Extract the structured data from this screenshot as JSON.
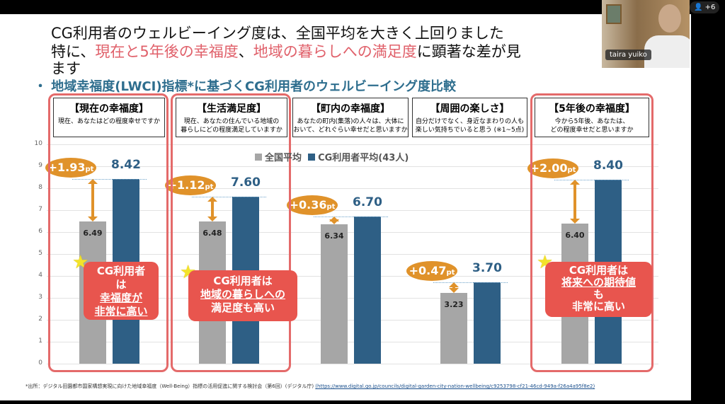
{
  "slide": {
    "title_line1": "CG利用者のウェルビーイング度は、全国平均を大きく上回りました",
    "title_line2_pre": "特に、",
    "title_line2_red1": "現在と5年後の幸福度",
    "title_line2_sep": "、",
    "title_line2_red2": "地域の暮らしへの満足度",
    "title_line2_post": "に顕著な差が見",
    "title_line3": "ます",
    "subtitle": "・ 地域幸福度(LWCI)指標*に基づくCG利用者のウェルビーイング度比較",
    "footnote": "*出所：デジタル田園都市国家構想実現に向けた地域幸福度（Well-Being）指標の活用促進に関する検討会（第6回）(デジタル庁)",
    "footnote_link": "(https://www.digital.go.jp/councils/digital-garden-city-nation-wellbeing/c9253798-cf21-46cd-949a-f26a4a95f8e2)"
  },
  "categories_detail": [
    {
      "title": "【現在の幸福度】",
      "desc": "現在、あなたはどの程度幸せですか"
    },
    {
      "title": "【生活満足度】",
      "desc": "現在、あなたの住んでいる地域の\n暮らしにどの程度満足していますか"
    },
    {
      "title": "【町内の幸福度】",
      "desc": "あなたの町内(集落)の人々は、大体に\nおいて、どれぐらい幸せだと思いますか"
    },
    {
      "title": "【周囲の楽しさ】",
      "desc": "自分だけでなく、身近なまわりの人も\n楽しい気持ちでいると思う (※1~5点)"
    },
    {
      "title": "【5年後の幸福度】",
      "desc": "今から5年後、あなたは、\nどの程度幸せだと思いますか"
    }
  ],
  "chart_data": {
    "type": "bar",
    "categories": [
      "現在の幸福度",
      "生活満足度",
      "町内の幸福度",
      "周囲の楽しさ",
      "5年後の幸福度"
    ],
    "series": [
      {
        "name": "全国平均",
        "values": [
          6.49,
          6.48,
          6.34,
          3.23,
          6.4
        ],
        "color": "#a6a6a6"
      },
      {
        "name": "CG利用者平均(43人)",
        "values": [
          8.42,
          7.6,
          6.7,
          3.7,
          8.4
        ],
        "color": "#2e5f85"
      }
    ],
    "differences": [
      "+1.93",
      "+1.12",
      "+0.36",
      "+0.47",
      "+2.00"
    ],
    "diff_unit": "pt",
    "yticks": [
      "0",
      "1",
      "2",
      "3",
      "4",
      "5",
      "6",
      "7",
      "8",
      "9",
      "10"
    ],
    "ylim": [
      0,
      10
    ],
    "grid": true,
    "legend": "top-center",
    "highlight_color": "#e46a6a",
    "diff_color": "#e0922a"
  },
  "callouts": [
    {
      "l1": "CG利用者",
      "l2": "は",
      "l3": "幸福度が",
      "l4": "非常に高い"
    },
    {
      "l1": "CG利用者は",
      "l2": "地域の暮らしへの",
      "l3": "満足度も高い"
    },
    {
      "l1": "CG利用者は",
      "l2": "将来への期待値",
      "l3": "も",
      "l4": "非常に高い"
    }
  ],
  "video": {
    "participant": "taira yuiko",
    "others_count": "+6"
  }
}
